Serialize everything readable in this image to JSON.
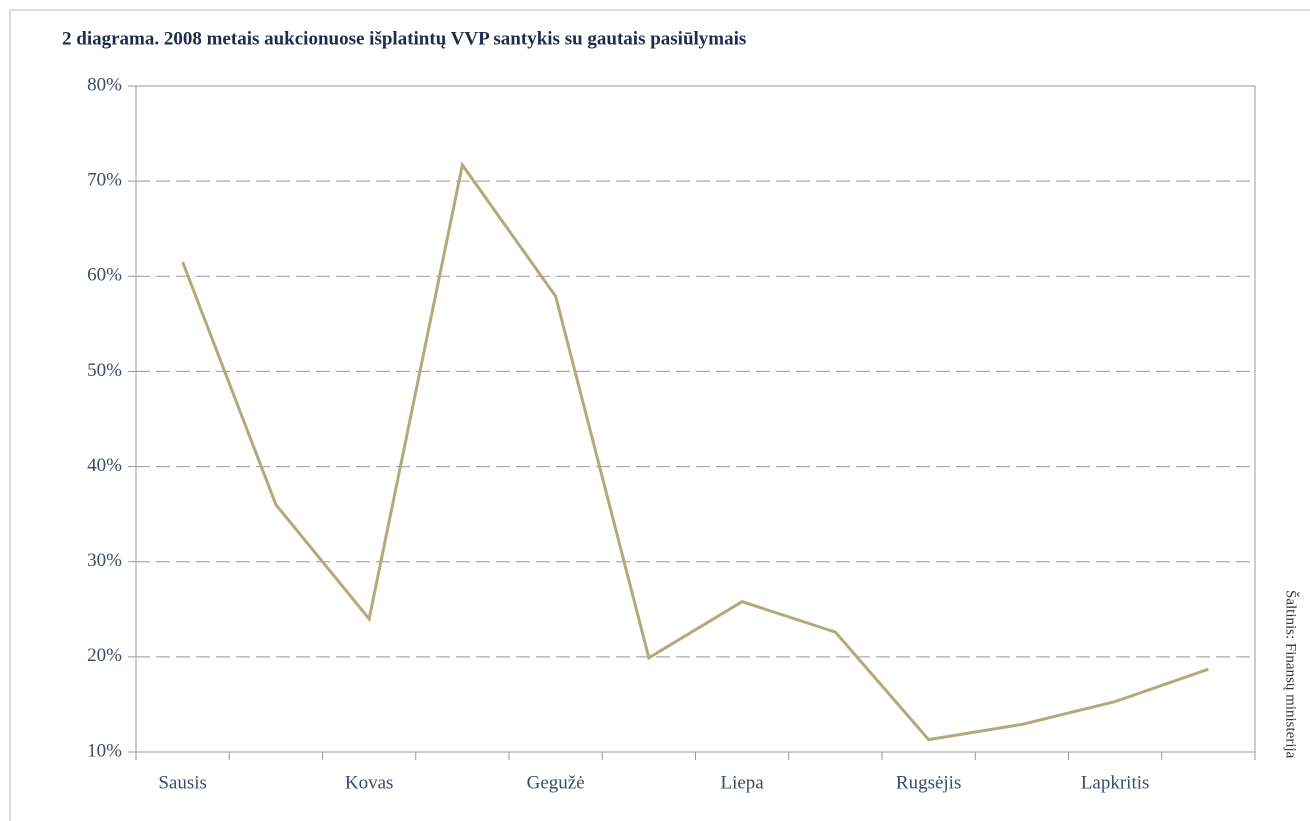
{
  "chart_data": {
    "type": "line",
    "title": "2 diagrama. 2008 metais aukcionuose išplatintų VVP santykis su gautais pasiūlymais",
    "source": "Šaltinis: Finansų ministerija",
    "categories": [
      "Sausis",
      null,
      "Kovas",
      null,
      "Gegužė",
      null,
      "Liepa",
      null,
      "Rugsėjis",
      null,
      "Lapkritis",
      null
    ],
    "series": [
      {
        "name": null,
        "color": "#b5a97a",
        "values": [
          61.5,
          36,
          24,
          71.7,
          57.9,
          19.9,
          25.8,
          22.6,
          11.3,
          12.9,
          15.3,
          18.7
        ]
      }
    ],
    "ylim": [
      10,
      80
    ],
    "yticks": [
      {
        "value": 10,
        "label": "10%"
      },
      {
        "value": 20,
        "label": "20%"
      },
      {
        "value": 30,
        "label": "30%"
      },
      {
        "value": 40,
        "label": "40%"
      },
      {
        "value": 50,
        "label": "50%"
      },
      {
        "value": 60,
        "label": "60%"
      },
      {
        "value": 70,
        "label": "70%"
      },
      {
        "value": 80,
        "label": "80%"
      }
    ],
    "grid": true
  }
}
